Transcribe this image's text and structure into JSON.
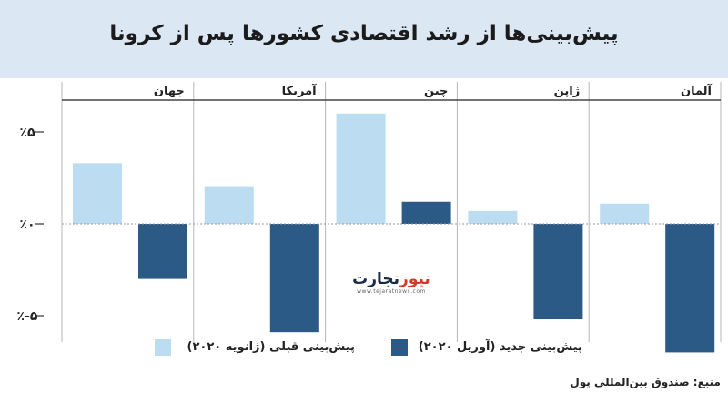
{
  "header": {
    "title": "پیش‌بینی‌ها از رشد اقتصادی کشورها پس از کرونا"
  },
  "chart_data": {
    "type": "bar",
    "categories": [
      "جهان",
      "آمریکا",
      "چین",
      "ژاپن",
      "آلمان"
    ],
    "series": [
      {
        "name": "پیش‌بینی قبلی (ژانویه ۲۰۲۰)",
        "values": [
          3.3,
          2.0,
          6.0,
          0.7,
          1.1
        ],
        "color": "#bcdcf1"
      },
      {
        "name": "پیش‌بینی جدید (آوریل ۲۰۲۰)",
        "values": [
          -3.0,
          -5.9,
          1.2,
          -5.2,
          -7.0
        ],
        "color": "#2c5a87"
      }
    ],
    "ylim": [
      -6.2,
      7.5
    ],
    "yticks": [
      5,
      0,
      -5
    ],
    "ytick_labels": [
      "٪۵",
      "٪۰",
      "٪-۵"
    ],
    "grid": false
  },
  "watermark": {
    "prefix": "تجارت",
    "accent": "نیوز",
    "url": "www.tejaratnews.com"
  },
  "source": "منبع: صندوق بین‌المللی پول"
}
